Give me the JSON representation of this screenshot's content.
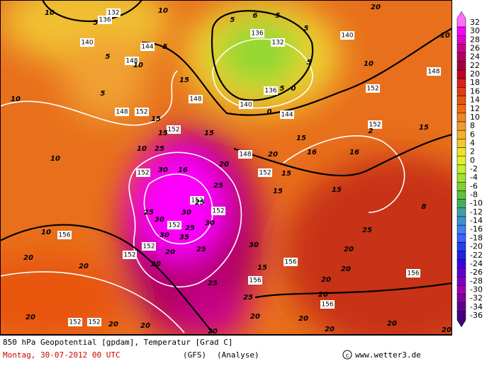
{
  "header": {
    "title": "850 hPa Geopotential [gpdam], Temperatur [Grad C]",
    "date": "Montag, 30-07-2012  00 UTC",
    "model": "(GFS)",
    "run": "(Analyse)",
    "source": "www.wetter3.de"
  },
  "colorbar": {
    "labels": [
      32,
      30,
      28,
      26,
      24,
      22,
      20,
      18,
      16,
      14,
      12,
      10,
      8,
      6,
      4,
      2,
      0,
      -2,
      -4,
      -6,
      -8,
      -10,
      -12,
      -14,
      -16,
      -18,
      -20,
      -22,
      -24,
      -26,
      -28,
      -30,
      -32,
      -34,
      -36
    ],
    "colors": [
      "#ff70ff",
      "#ff00ff",
      "#e000c8",
      "#c8008c",
      "#b00060",
      "#a00040",
      "#c00020",
      "#d82020",
      "#e03c10",
      "#e85510",
      "#f06c10",
      "#f08424",
      "#f09a30",
      "#f0b030",
      "#f0c830",
      "#f0e030",
      "#e0f030",
      "#c0f030",
      "#a0e030",
      "#80d030",
      "#60c040",
      "#40b060",
      "#40a0a0",
      "#4090d0",
      "#4080f0",
      "#4060ff",
      "#2040f0",
      "#2020e0",
      "#4000e0",
      "#6000d0",
      "#8000c0",
      "#a000b0",
      "#8000a0",
      "#600090",
      "#400080"
    ]
  },
  "map": {
    "contour_labels": [
      132,
      136,
      140,
      144,
      148,
      148,
      152,
      148,
      152,
      148,
      152,
      152,
      152,
      152,
      152,
      152,
      152,
      156,
      152,
      152,
      156,
      156,
      156,
      156,
      140,
      152,
      152,
      148,
      136,
      132,
      136,
      140,
      144,
      10,
      5,
      5,
      5,
      10,
      10,
      10,
      10,
      10,
      10,
      10,
      10,
      5,
      6,
      5,
      5,
      5,
      5,
      0,
      0,
      5,
      15,
      15,
      15,
      15,
      25,
      20,
      20,
      16,
      15,
      15,
      15,
      15,
      16,
      2,
      15,
      8,
      16,
      30,
      25,
      25,
      25,
      30,
      30,
      25,
      30,
      35,
      30,
      20,
      20,
      25,
      30,
      25,
      20,
      20,
      20,
      20,
      20,
      20,
      20,
      20,
      25,
      20,
      20,
      20,
      20,
      20,
      20,
      20,
      15,
      25,
      20
    ]
  }
}
